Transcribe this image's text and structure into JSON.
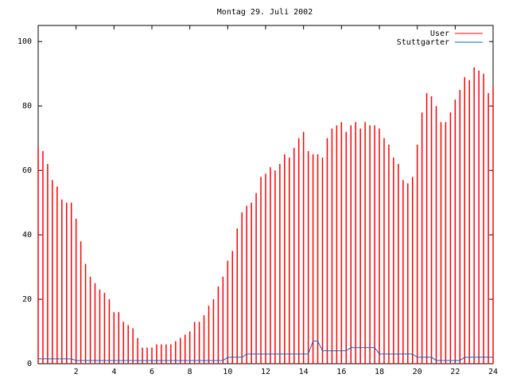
{
  "chart_data": {
    "type": "impulse",
    "title": "Montag 29. Juli 2002",
    "x": [
      0,
      0.25,
      0.5,
      0.75,
      1,
      1.25,
      1.5,
      1.75,
      2,
      2.25,
      2.5,
      2.75,
      3,
      3.25,
      3.5,
      3.75,
      4,
      4.25,
      4.5,
      4.75,
      5,
      5.25,
      5.5,
      5.75,
      6,
      6.25,
      6.5,
      6.75,
      7,
      7.25,
      7.5,
      7.75,
      8,
      8.25,
      8.5,
      8.75,
      9,
      9.25,
      9.5,
      9.75,
      10,
      10.25,
      10.5,
      10.75,
      11,
      11.25,
      11.5,
      11.75,
      12,
      12.25,
      12.5,
      12.75,
      13,
      13.25,
      13.5,
      13.75,
      14,
      14.25,
      14.5,
      14.75,
      15,
      15.25,
      15.5,
      15.75,
      16,
      16.25,
      16.5,
      16.75,
      17,
      17.25,
      17.5,
      17.75,
      18,
      18.25,
      18.5,
      18.75,
      19,
      19.25,
      19.5,
      19.75,
      20,
      20.25,
      20.5,
      20.75,
      21,
      21.25,
      21.5,
      21.75,
      22,
      22.25,
      22.5,
      22.75,
      23,
      23.25,
      23.5,
      23.75,
      24
    ],
    "series": [
      {
        "name": "User",
        "color": "#ff0000",
        "style": "impulses",
        "values": [
          67,
          66,
          62,
          57,
          55,
          51,
          50,
          50,
          45,
          38,
          31,
          27,
          25,
          23,
          22,
          20,
          16,
          16,
          13,
          12,
          11,
          8,
          5,
          5,
          5,
          6,
          6,
          6,
          6,
          7,
          8,
          9,
          10,
          13,
          13,
          15,
          18,
          20,
          24,
          27,
          32,
          35,
          42,
          47,
          49,
          50,
          53,
          58,
          59,
          61,
          60,
          62,
          65,
          64,
          67,
          70,
          72,
          66,
          65,
          65,
          64,
          70,
          73,
          74,
          75,
          72,
          74,
          75,
          73,
          75,
          74,
          74,
          73,
          70,
          68,
          64,
          62,
          57,
          56,
          58,
          68,
          78,
          84,
          83,
          80,
          75,
          75,
          78,
          82,
          85,
          89,
          88,
          92,
          91,
          90,
          84,
          86
        ]
      },
      {
        "name": "Stuttgarter",
        "color": "#0066cc",
        "style": "lines",
        "values": [
          1.5,
          1.5,
          1.5,
          1.5,
          1.5,
          1.5,
          1.5,
          1.5,
          1,
          1,
          1,
          1,
          1,
          1,
          1,
          1,
          1,
          1,
          1,
          1,
          1,
          1,
          1,
          1,
          1,
          1,
          1,
          1,
          1,
          1,
          1,
          1,
          1,
          1,
          1,
          1,
          1,
          1,
          1,
          1,
          2,
          2,
          2,
          2,
          3,
          3,
          3,
          3,
          3,
          3,
          3,
          3,
          3,
          3,
          3,
          3,
          3,
          3,
          7,
          7,
          4,
          4,
          4,
          4,
          4,
          4,
          5,
          5,
          5,
          5,
          5,
          5,
          3,
          3,
          3,
          3,
          3,
          3,
          3,
          3,
          2,
          2,
          2,
          2,
          1,
          1,
          1,
          1,
          1,
          1,
          2,
          2,
          2,
          2,
          2,
          2,
          2
        ]
      }
    ],
    "xlim": [
      0,
      24
    ],
    "xticks": [
      2,
      4,
      6,
      8,
      10,
      12,
      14,
      16,
      18,
      20,
      22,
      24
    ],
    "ylim": [
      0,
      105
    ],
    "yticks": [
      0,
      20,
      40,
      60,
      80,
      100
    ],
    "legend": "upper right"
  }
}
